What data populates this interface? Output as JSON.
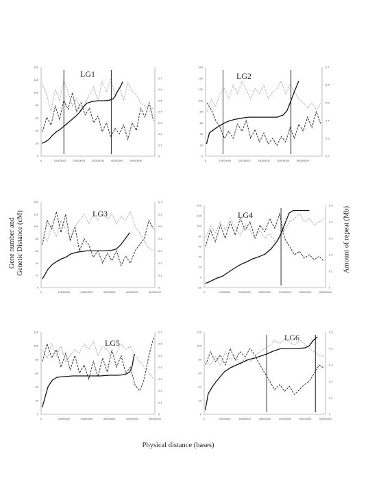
{
  "figure": {
    "ylabel_left_1": "Gene number and",
    "ylabel_left_2": "Genetic Distance (cM)",
    "ylabel_right": "Amount of repeat (Mb)",
    "xlabel": "Physical distance (bases)"
  },
  "chart_data": [
    {
      "type": "line",
      "title": "LG1",
      "xlim": [
        0,
        60000000
      ],
      "xticks": [
        0,
        10000000,
        20000000,
        30000000,
        40000000,
        50000000
      ],
      "ylim": [
        0,
        140
      ],
      "yticks": [
        0,
        20,
        40,
        60,
        80,
        100,
        120,
        140
      ],
      "y2lim": [
        0,
        0.8
      ],
      "y2ticks": [
        0,
        0.1,
        0.2,
        0.3,
        0.4,
        0.5,
        0.6,
        0.7
      ],
      "vlines": [
        12000000,
        37000000
      ],
      "series": [
        {
          "role": "gene_number",
          "x": [
            500000,
            2000000,
            4000000,
            6000000,
            8000000,
            10000000,
            12000000,
            14000000,
            16000000,
            18000000,
            20000000,
            22000000,
            24000000,
            27000000,
            30000000,
            33000000,
            36000000,
            38000000,
            39000000,
            40000000,
            41000000,
            42000000,
            43000000
          ],
          "y": [
            20,
            22,
            26,
            33,
            38,
            42,
            47,
            52,
            57,
            62,
            68,
            76,
            83,
            86,
            87,
            87,
            88,
            90,
            94,
            100,
            105,
            110,
            117
          ]
        },
        {
          "role": "repeat_dark",
          "y2": [
            0.22,
            0.35,
            0.28,
            0.45,
            0.33,
            0.5,
            0.42,
            0.57,
            0.4,
            0.48,
            0.37,
            0.43,
            0.3,
            0.36,
            0.22,
            0.3,
            0.17,
            0.25,
            0.2,
            0.28,
            0.15,
            0.3,
            0.23,
            0.43,
            0.35,
            0.48,
            0.32
          ]
        },
        {
          "role": "repeat_light",
          "y2": [
            0.65,
            0.55,
            0.4,
            0.6,
            0.5,
            0.68,
            0.58,
            0.45,
            0.52,
            0.4,
            0.48,
            0.55,
            0.62,
            0.5,
            0.67,
            0.58,
            0.7,
            0.55,
            0.62,
            0.5,
            0.66,
            0.58,
            0.55,
            0.48,
            0.45,
            0.4,
            0.44
          ]
        }
      ]
    },
    {
      "type": "line",
      "title": "LG2",
      "xlim": [
        0,
        60000000
      ],
      "xticks": [
        0,
        10000000,
        20000000,
        30000000,
        40000000,
        50000000
      ],
      "ylim": [
        0,
        160
      ],
      "yticks": [
        0,
        20,
        40,
        60,
        80,
        100,
        120,
        140,
        160
      ],
      "y2lim": [
        0.2,
        0.7
      ],
      "y2ticks": [
        0.2,
        0.3,
        0.4,
        0.5,
        0.6,
        0.7
      ],
      "vlines": [
        9000000,
        44000000
      ],
      "series": [
        {
          "role": "gene_number",
          "x": [
            500000,
            2000000,
            4000000,
            6000000,
            8000000,
            10000000,
            12000000,
            15000000,
            18000000,
            22000000,
            26000000,
            30000000,
            34000000,
            37000000,
            40000000,
            42000000,
            44000000,
            46000000,
            48000000
          ],
          "y": [
            22,
            42,
            47,
            52,
            56,
            60,
            63,
            66,
            68,
            70,
            70,
            70,
            70,
            70,
            74,
            82,
            100,
            118,
            135
          ]
        },
        {
          "role": "repeat_dark",
          "y2": [
            0.5,
            0.46,
            0.4,
            0.36,
            0.3,
            0.34,
            0.3,
            0.38,
            0.34,
            0.4,
            0.3,
            0.35,
            0.28,
            0.33,
            0.27,
            0.3,
            0.26,
            0.31,
            0.28,
            0.36,
            0.3,
            0.38,
            0.34,
            0.42,
            0.36,
            0.45,
            0.38
          ]
        },
        {
          "role": "repeat_light",
          "y2": [
            0.45,
            0.52,
            0.48,
            0.55,
            0.58,
            0.52,
            0.6,
            0.55,
            0.62,
            0.57,
            0.52,
            0.58,
            0.55,
            0.6,
            0.52,
            0.56,
            0.58,
            0.62,
            0.55,
            0.6,
            0.56,
            0.52,
            0.5,
            0.47,
            0.5,
            0.46,
            0.5
          ]
        }
      ]
    },
    {
      "type": "line",
      "title": "LG3",
      "xlim": [
        0,
        50000000
      ],
      "xticks": [
        0,
        10000000,
        20000000,
        30000000,
        40000000,
        50000000
      ],
      "ylim": [
        0,
        140
      ],
      "yticks": [
        0,
        20,
        40,
        60,
        80,
        100,
        120,
        140
      ],
      "y2lim": [
        0,
        0.7
      ],
      "y2ticks": [
        0,
        0.1,
        0.2,
        0.3,
        0.4,
        0.5,
        0.6,
        0.7
      ],
      "vlines": [],
      "series": [
        {
          "role": "gene_number",
          "x": [
            500000,
            1500000,
            3000000,
            5000000,
            7000000,
            9000000,
            11000000,
            13000000,
            16000000,
            20000000,
            24000000,
            28000000,
            31000000,
            33000000,
            35000000,
            37000000,
            39000000
          ],
          "y": [
            14,
            20,
            30,
            38,
            43,
            47,
            50,
            55,
            58,
            60,
            60,
            60,
            61,
            63,
            70,
            80,
            90
          ]
        },
        {
          "role": "repeat_dark",
          "y2": [
            0.35,
            0.55,
            0.48,
            0.62,
            0.45,
            0.6,
            0.38,
            0.5,
            0.3,
            0.4,
            0.35,
            0.25,
            0.3,
            0.2,
            0.28,
            0.22,
            0.3,
            0.18,
            0.26,
            0.2,
            0.3,
            0.35,
            0.4,
            0.55,
            0.48
          ]
        },
        {
          "role": "repeat_light",
          "y2": [
            0.45,
            0.38,
            0.5,
            0.42,
            0.55,
            0.48,
            0.4,
            0.5,
            0.55,
            0.6,
            0.52,
            0.6,
            0.55,
            0.62,
            0.56,
            0.6,
            0.52,
            0.58,
            0.55,
            0.62,
            0.5,
            0.45,
            0.38,
            0.32,
            0.3
          ]
        }
      ]
    },
    {
      "type": "line",
      "title": "LG4",
      "xlim": [
        0,
        60000000
      ],
      "xticks": [
        0,
        10000000,
        20000000,
        30000000,
        40000000,
        50000000,
        60000000
      ],
      "ylim": [
        -20,
        140
      ],
      "yticks": [
        -20,
        0,
        20,
        40,
        60,
        80,
        100,
        120,
        140
      ],
      "y2lim": [
        0,
        0.5
      ],
      "y2ticks": [
        0,
        0.1,
        0.2,
        0.3,
        0.4,
        0.5
      ],
      "vlines": [
        38000000
      ],
      "series": [
        {
          "role": "gene_number",
          "x": [
            500000,
            3000000,
            6000000,
            9000000,
            12000000,
            15000000,
            18000000,
            21000000,
            24000000,
            27000000,
            30000000,
            33000000,
            36000000,
            38000000,
            40000000,
            42000000,
            44000000,
            46000000,
            48000000,
            50000000,
            52000000
          ],
          "y": [
            -12,
            -8,
            -2,
            2,
            10,
            18,
            25,
            30,
            36,
            40,
            45,
            55,
            70,
            85,
            105,
            125,
            130,
            130,
            130,
            130,
            130
          ]
        },
        {
          "role": "repeat_dark",
          "y2": [
            0.25,
            0.35,
            0.28,
            0.38,
            0.3,
            0.4,
            0.32,
            0.42,
            0.35,
            0.4,
            0.3,
            0.38,
            0.34,
            0.42,
            0.36,
            0.45,
            0.3,
            0.25,
            0.2,
            0.22,
            0.18,
            0.2,
            0.17,
            0.19,
            0.16
          ]
        },
        {
          "role": "repeat_light",
          "y2": [
            0.3,
            0.38,
            0.33,
            0.4,
            0.35,
            0.42,
            0.37,
            0.32,
            0.38,
            0.35,
            0.3,
            0.35,
            0.3,
            0.33,
            0.28,
            0.3,
            0.35,
            0.4,
            0.42,
            0.45,
            0.4,
            0.42,
            0.38,
            0.4,
            0.42
          ]
        }
      ]
    },
    {
      "type": "line",
      "title": "LG5",
      "xlim": [
        0,
        50000000
      ],
      "xticks": [
        0,
        10000000,
        20000000,
        30000000,
        40000000,
        50000000
      ],
      "ylim": [
        0,
        120
      ],
      "yticks": [
        0,
        20,
        40,
        60,
        80,
        100,
        120
      ],
      "y2lim": [
        0,
        0.7
      ],
      "y2ticks": [
        0,
        0.1,
        0.2,
        0.3,
        0.4,
        0.5,
        0.6,
        0.7
      ],
      "vlines": [],
      "series": [
        {
          "role": "gene_number",
          "x": [
            500000,
            1500000,
            3000000,
            5000000,
            7000000,
            10000000,
            14000000,
            18000000,
            22000000,
            26000000,
            30000000,
            34000000,
            37000000,
            39000000,
            40000000,
            41000000
          ],
          "y": [
            10,
            22,
            40,
            50,
            54,
            55,
            56,
            56,
            56,
            56,
            57,
            57,
            58,
            62,
            70,
            88
          ]
        },
        {
          "role": "repeat_dark",
          "y2": [
            0.45,
            0.6,
            0.48,
            0.55,
            0.4,
            0.52,
            0.38,
            0.5,
            0.35,
            0.42,
            0.3,
            0.45,
            0.32,
            0.48,
            0.36,
            0.55,
            0.4,
            0.5,
            0.35,
            0.4,
            0.25,
            0.2,
            0.3,
            0.5,
            0.65
          ]
        },
        {
          "role": "repeat_light",
          "y2": [
            0.55,
            0.48,
            0.6,
            0.5,
            0.58,
            0.45,
            0.5,
            0.55,
            0.52,
            0.6,
            0.55,
            0.62,
            0.5,
            0.58,
            0.55,
            0.48,
            0.52,
            0.6,
            0.55,
            0.58,
            0.5,
            0.45,
            0.4,
            0.35,
            0.3
          ]
        }
      ]
    },
    {
      "type": "line",
      "title": "LG6",
      "xlim": [
        0,
        60000000
      ],
      "xticks": [
        0,
        10000000,
        20000000,
        30000000,
        40000000,
        50000000,
        60000000
      ],
      "ylim": [
        0,
        120
      ],
      "yticks": [
        0,
        20,
        40,
        60,
        80,
        100,
        120
      ],
      "y2lim": [
        0,
        0.5
      ],
      "y2ticks": [
        0,
        0.1,
        0.2,
        0.3,
        0.4,
        0.5
      ],
      "vlines": [
        31000000,
        55000000
      ],
      "series": [
        {
          "role": "gene_number",
          "x": [
            500000,
            2000000,
            4000000,
            6000000,
            8000000,
            10000000,
            13000000,
            16000000,
            19000000,
            22000000,
            25000000,
            28000000,
            31000000,
            34000000,
            38000000,
            42000000,
            46000000,
            50000000,
            52000000,
            54000000,
            56000000
          ],
          "y": [
            6,
            30,
            40,
            48,
            55,
            62,
            68,
            72,
            76,
            80,
            82,
            85,
            88,
            92,
            96,
            96,
            96,
            97,
            100,
            108,
            113
          ]
        },
        {
          "role": "repeat_dark",
          "y2": [
            0.3,
            0.38,
            0.32,
            0.36,
            0.3,
            0.4,
            0.33,
            0.38,
            0.35,
            0.4,
            0.36,
            0.3,
            0.25,
            0.2,
            0.15,
            0.18,
            0.14,
            0.17,
            0.12,
            0.15,
            0.18,
            0.2,
            0.25,
            0.3,
            0.28
          ]
        },
        {
          "role": "repeat_light",
          "y2": [
            0.32,
            0.3,
            0.35,
            0.3,
            0.38,
            0.33,
            0.36,
            0.3,
            0.34,
            0.32,
            0.36,
            0.38,
            0.4,
            0.42,
            0.45,
            0.43,
            0.46,
            0.44,
            0.42,
            0.45,
            0.43,
            0.4,
            0.38,
            0.36,
            0.35
          ]
        }
      ]
    }
  ]
}
